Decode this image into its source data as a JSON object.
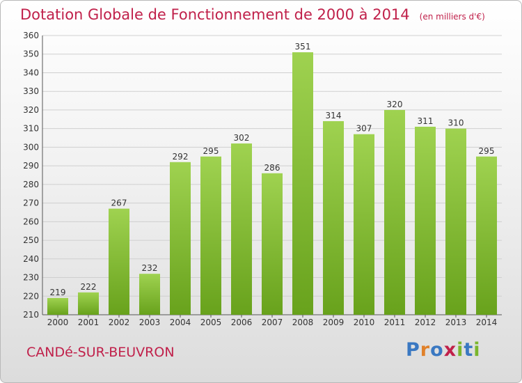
{
  "title": "Dotation Globale de Fonctionnement de 2000 à 2014",
  "unit_note": "(en milliers d'€)",
  "place_name": "CANDé-SUR-BEUVRON",
  "logo": {
    "text": "Proxiti",
    "letter_colors": [
      "#3a78c2",
      "#e0812a",
      "#3a78c2",
      "#c0204a",
      "#7ab62d",
      "#3a78c2",
      "#7ab62d"
    ]
  },
  "colors": {
    "title": "#c0204a",
    "bar_light": "#9fd250",
    "bar_dark": "#68a21c",
    "grid": "#cfcfcf",
    "axis": "#555555"
  },
  "chart_data": {
    "type": "bar",
    "title": "Dotation Globale de Fonctionnement de 2000 à 2014",
    "xlabel": "",
    "ylabel": "",
    "categories": [
      "2000",
      "2001",
      "2002",
      "2003",
      "2004",
      "2005",
      "2006",
      "2007",
      "2008",
      "2009",
      "2010",
      "2011",
      "2012",
      "2013",
      "2014"
    ],
    "values": [
      219,
      222,
      267,
      232,
      292,
      295,
      302,
      286,
      351,
      314,
      307,
      320,
      311,
      310,
      295
    ],
    "ylim": [
      210,
      360
    ],
    "yticks": [
      210,
      220,
      230,
      240,
      250,
      260,
      270,
      280,
      290,
      300,
      310,
      320,
      330,
      340,
      350,
      360
    ],
    "grid": true,
    "data_labels": true
  }
}
